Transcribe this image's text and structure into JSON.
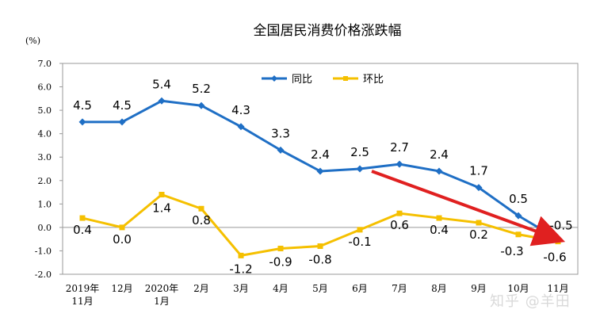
{
  "chart_data": {
    "type": "line",
    "title": "全国居民消费价格涨跌幅",
    "ylabel": "(%)",
    "xlabel": "",
    "ylim": [
      -2.0,
      7.0
    ],
    "yticks": [
      "7.0",
      "6.0",
      "5.0",
      "4.0",
      "3.0",
      "2.0",
      "1.0",
      "0.0",
      "-1.0",
      "-2.0"
    ],
    "categories": [
      [
        "2019年",
        "11月"
      ],
      [
        "12月"
      ],
      [
        "2020年",
        "1月"
      ],
      [
        "2月"
      ],
      [
        "3月"
      ],
      [
        "4月"
      ],
      [
        "5月"
      ],
      [
        "6月"
      ],
      [
        "7月"
      ],
      [
        "8月"
      ],
      [
        "9月"
      ],
      [
        "10月"
      ],
      [
        "11月"
      ]
    ],
    "series": [
      {
        "name": "同比",
        "color": "#1f6fc5",
        "values": [
          4.5,
          4.5,
          5.4,
          5.2,
          4.3,
          3.3,
          2.4,
          2.5,
          2.7,
          2.4,
          1.7,
          0.5,
          -0.5
        ],
        "labels": [
          "4.5",
          "4.5",
          "5.4",
          "5.2",
          "4.3",
          "3.3",
          "2.4",
          "2.5",
          "2.7",
          "2.4",
          "1.7",
          "0.5",
          "-0.5"
        ]
      },
      {
        "name": "环比",
        "color": "#f5c000",
        "values": [
          0.4,
          0.0,
          1.4,
          0.8,
          -1.2,
          -0.9,
          -0.8,
          -0.1,
          0.6,
          0.4,
          0.2,
          -0.3,
          -0.6
        ],
        "labels": [
          "0.4",
          "0.0",
          "1.4",
          "0.8",
          "-1.2",
          "-0.9",
          "-0.8",
          "-0.1",
          "0.6",
          "0.4",
          "0.2",
          "-0.3",
          "-0.6"
        ]
      }
    ],
    "legend_position": "top-center",
    "grid": false,
    "annotation": {
      "type": "arrow",
      "color": "#e02020",
      "from": {
        "x": 7.3,
        "y": 2.4
      },
      "to": {
        "x": 12.0,
        "y": -0.5
      }
    }
  },
  "watermark": "知乎 @羊田"
}
